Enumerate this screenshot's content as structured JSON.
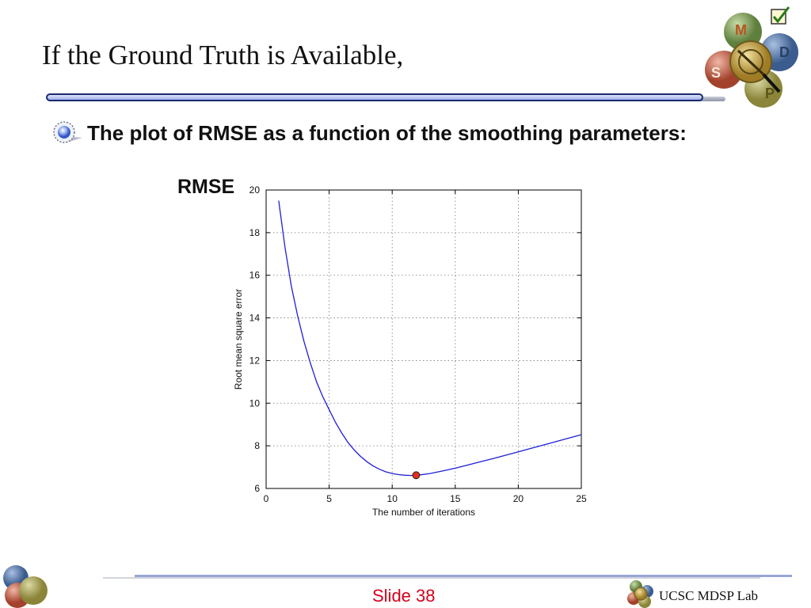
{
  "slide": {
    "title": "If the Ground Truth is Available,",
    "bullet": "The plot of RMSE as a function of the smoothing parameters:",
    "rmse_label": "RMSE",
    "slide_number": "Slide 38",
    "lab_name": "UCSC MDSP Lab",
    "logo_letters": [
      "M",
      "D",
      "S",
      "P"
    ]
  },
  "colors": {
    "title_bar_border": "#1a2a6c",
    "line": "#1f1fd6",
    "marker": "#e0301e",
    "slide_number": "#d6001c"
  },
  "icons": {
    "bullet": "gear-bullet-icon",
    "checkbox": "checkbox-icon"
  },
  "chart_data": {
    "type": "line",
    "xlabel": "The number of iterations",
    "ylabel": "Root mean square error",
    "xlim": [
      0,
      25
    ],
    "ylim": [
      6,
      20
    ],
    "xticks": [
      0,
      5,
      10,
      15,
      20,
      25
    ],
    "yticks": [
      6,
      8,
      10,
      12,
      14,
      16,
      18,
      20
    ],
    "grid": true,
    "series": [
      {
        "x": [
          1,
          1.5,
          2,
          2.5,
          3,
          3.5,
          4,
          4.5,
          5,
          5.5,
          6,
          6.5,
          7,
          7.5,
          8,
          8.5,
          9,
          9.5,
          10,
          10.5,
          11,
          11.5,
          12,
          13,
          14,
          15,
          16,
          17,
          18,
          19,
          20,
          21,
          22,
          23,
          24,
          25
        ],
        "y": [
          19.5,
          17.3,
          15.5,
          14.1,
          12.9,
          11.9,
          11.0,
          10.3,
          9.7,
          9.1,
          8.6,
          8.15,
          7.8,
          7.5,
          7.25,
          7.05,
          6.9,
          6.78,
          6.7,
          6.65,
          6.62,
          6.61,
          6.62,
          6.7,
          6.82,
          6.95,
          7.1,
          7.25,
          7.4,
          7.56,
          7.72,
          7.88,
          8.04,
          8.2,
          8.36,
          8.52
        ]
      }
    ],
    "highlight": {
      "x": 11.9,
      "y": 6.62
    }
  }
}
